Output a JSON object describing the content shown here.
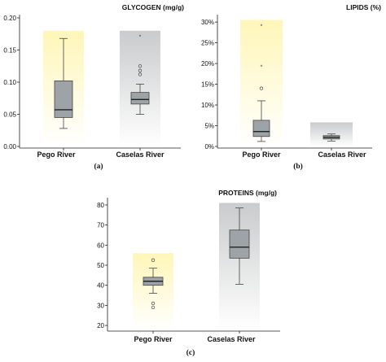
{
  "colors": {
    "pego_band_top": "#fff6b8",
    "pego_band_bottom": "#ffffff",
    "caselas_band_top": "#c9cbcc",
    "caselas_band_bottom": "#ffffff",
    "box_fill": "#9da3a6"
  },
  "chart_data": [
    {
      "type": "boxplot",
      "panel_label": "(a)",
      "title": "GLYCOGEN (mg/g)",
      "categories": [
        "Pego River",
        "Caselas River"
      ],
      "ylim": [
        0.0,
        0.2
      ],
      "yticks": [
        0.0,
        0.05,
        0.1,
        0.15,
        0.2
      ],
      "ytick_labels": [
        "0.00",
        "0.05",
        "0.10",
        "0.15",
        "0.20"
      ],
      "band_top": 0.18,
      "boxes": [
        {
          "category": "Pego River",
          "min": 0.028,
          "q1": 0.045,
          "median": 0.057,
          "q3": 0.102,
          "max": 0.168,
          "outliers_circle": [],
          "outliers_star": []
        },
        {
          "category": "Caselas River",
          "min": 0.05,
          "q1": 0.066,
          "median": 0.073,
          "q3": 0.084,
          "max": 0.097,
          "outliers_circle": [
            0.112,
            0.118,
            0.125
          ],
          "outliers_star": [
            0.171
          ]
        }
      ]
    },
    {
      "type": "boxplot",
      "panel_label": "(b)",
      "title": "LIPIDS (%)",
      "categories": [
        "Pego River",
        "Caselas River"
      ],
      "ylim": [
        0,
        31
      ],
      "yticks": [
        0,
        5,
        10,
        15,
        20,
        25,
        30
      ],
      "ytick_labels": [
        "0%",
        "5%",
        "10%",
        "15%",
        "20%",
        "25%",
        "30%"
      ],
      "band_tops": [
        30.5,
        5.8
      ],
      "boxes": [
        {
          "category": "Pego River",
          "min": 1.2,
          "q1": 2.4,
          "median": 3.6,
          "q3": 6.3,
          "max": 11.0,
          "outliers_circle": [
            14.0
          ],
          "outliers_star": [
            19.2,
            29.0
          ]
        },
        {
          "category": "Caselas River",
          "min": 1.3,
          "q1": 1.8,
          "median": 2.2,
          "q3": 2.6,
          "max": 3.0,
          "outliers_circle": [],
          "outliers_star": []
        }
      ]
    },
    {
      "type": "boxplot",
      "panel_label": "(c)",
      "title": "PROTEINS (mg/g)",
      "categories": [
        "Pego River",
        "Caselas River"
      ],
      "ylim": [
        18,
        82
      ],
      "yticks": [
        20,
        30,
        40,
        50,
        60,
        70,
        80
      ],
      "ytick_labels": [
        "20",
        "30",
        "40",
        "50",
        "60",
        "70",
        "80"
      ],
      "band_tops": [
        56,
        81
      ],
      "boxes": [
        {
          "category": "Pego River",
          "min": 36,
          "q1": 40,
          "median": 42,
          "q3": 44,
          "max": 48.5,
          "outliers_circle": [
            52.5,
            31,
            29
          ],
          "outliers_star": []
        },
        {
          "category": "Caselas River",
          "min": 40.5,
          "q1": 53.5,
          "median": 59,
          "q3": 67.5,
          "max": 78.5,
          "outliers_circle": [],
          "outliers_star": []
        }
      ]
    }
  ]
}
